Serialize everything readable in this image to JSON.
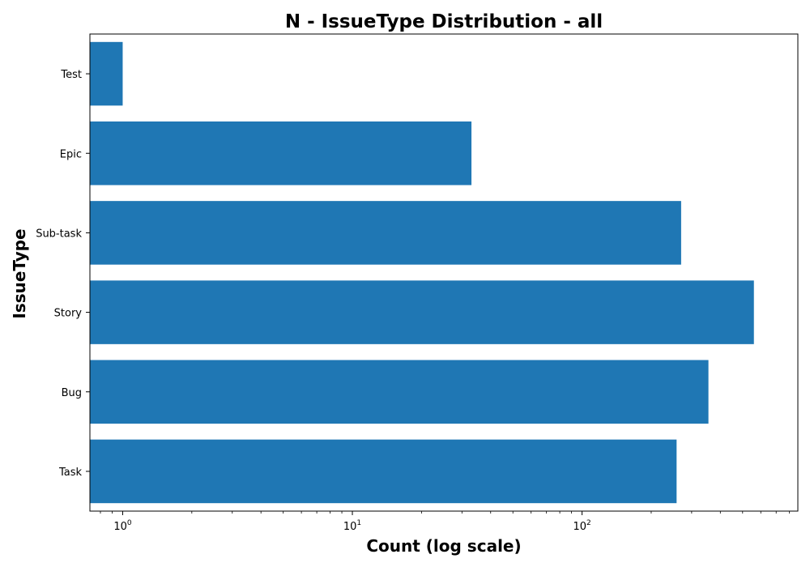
{
  "chart_data": {
    "type": "bar",
    "orientation": "horizontal",
    "title": "N - IssueType Distribution - all",
    "xlabel": "Count (log scale)",
    "ylabel": "IssueType",
    "x_scale": "log",
    "xlim": [
      0.72,
      870
    ],
    "x_ticks": [
      {
        "value": 1,
        "base": "10",
        "exp": "0"
      },
      {
        "value": 10,
        "base": "10",
        "exp": "1"
      },
      {
        "value": 100,
        "base": "10",
        "exp": "2"
      }
    ],
    "categories": [
      "Test",
      "Epic",
      "Sub-task",
      "Story",
      "Bug",
      "Task"
    ],
    "values": [
      1,
      33,
      270,
      560,
      355,
      258
    ],
    "bar_color": "#1f77b4",
    "grid": false
  }
}
